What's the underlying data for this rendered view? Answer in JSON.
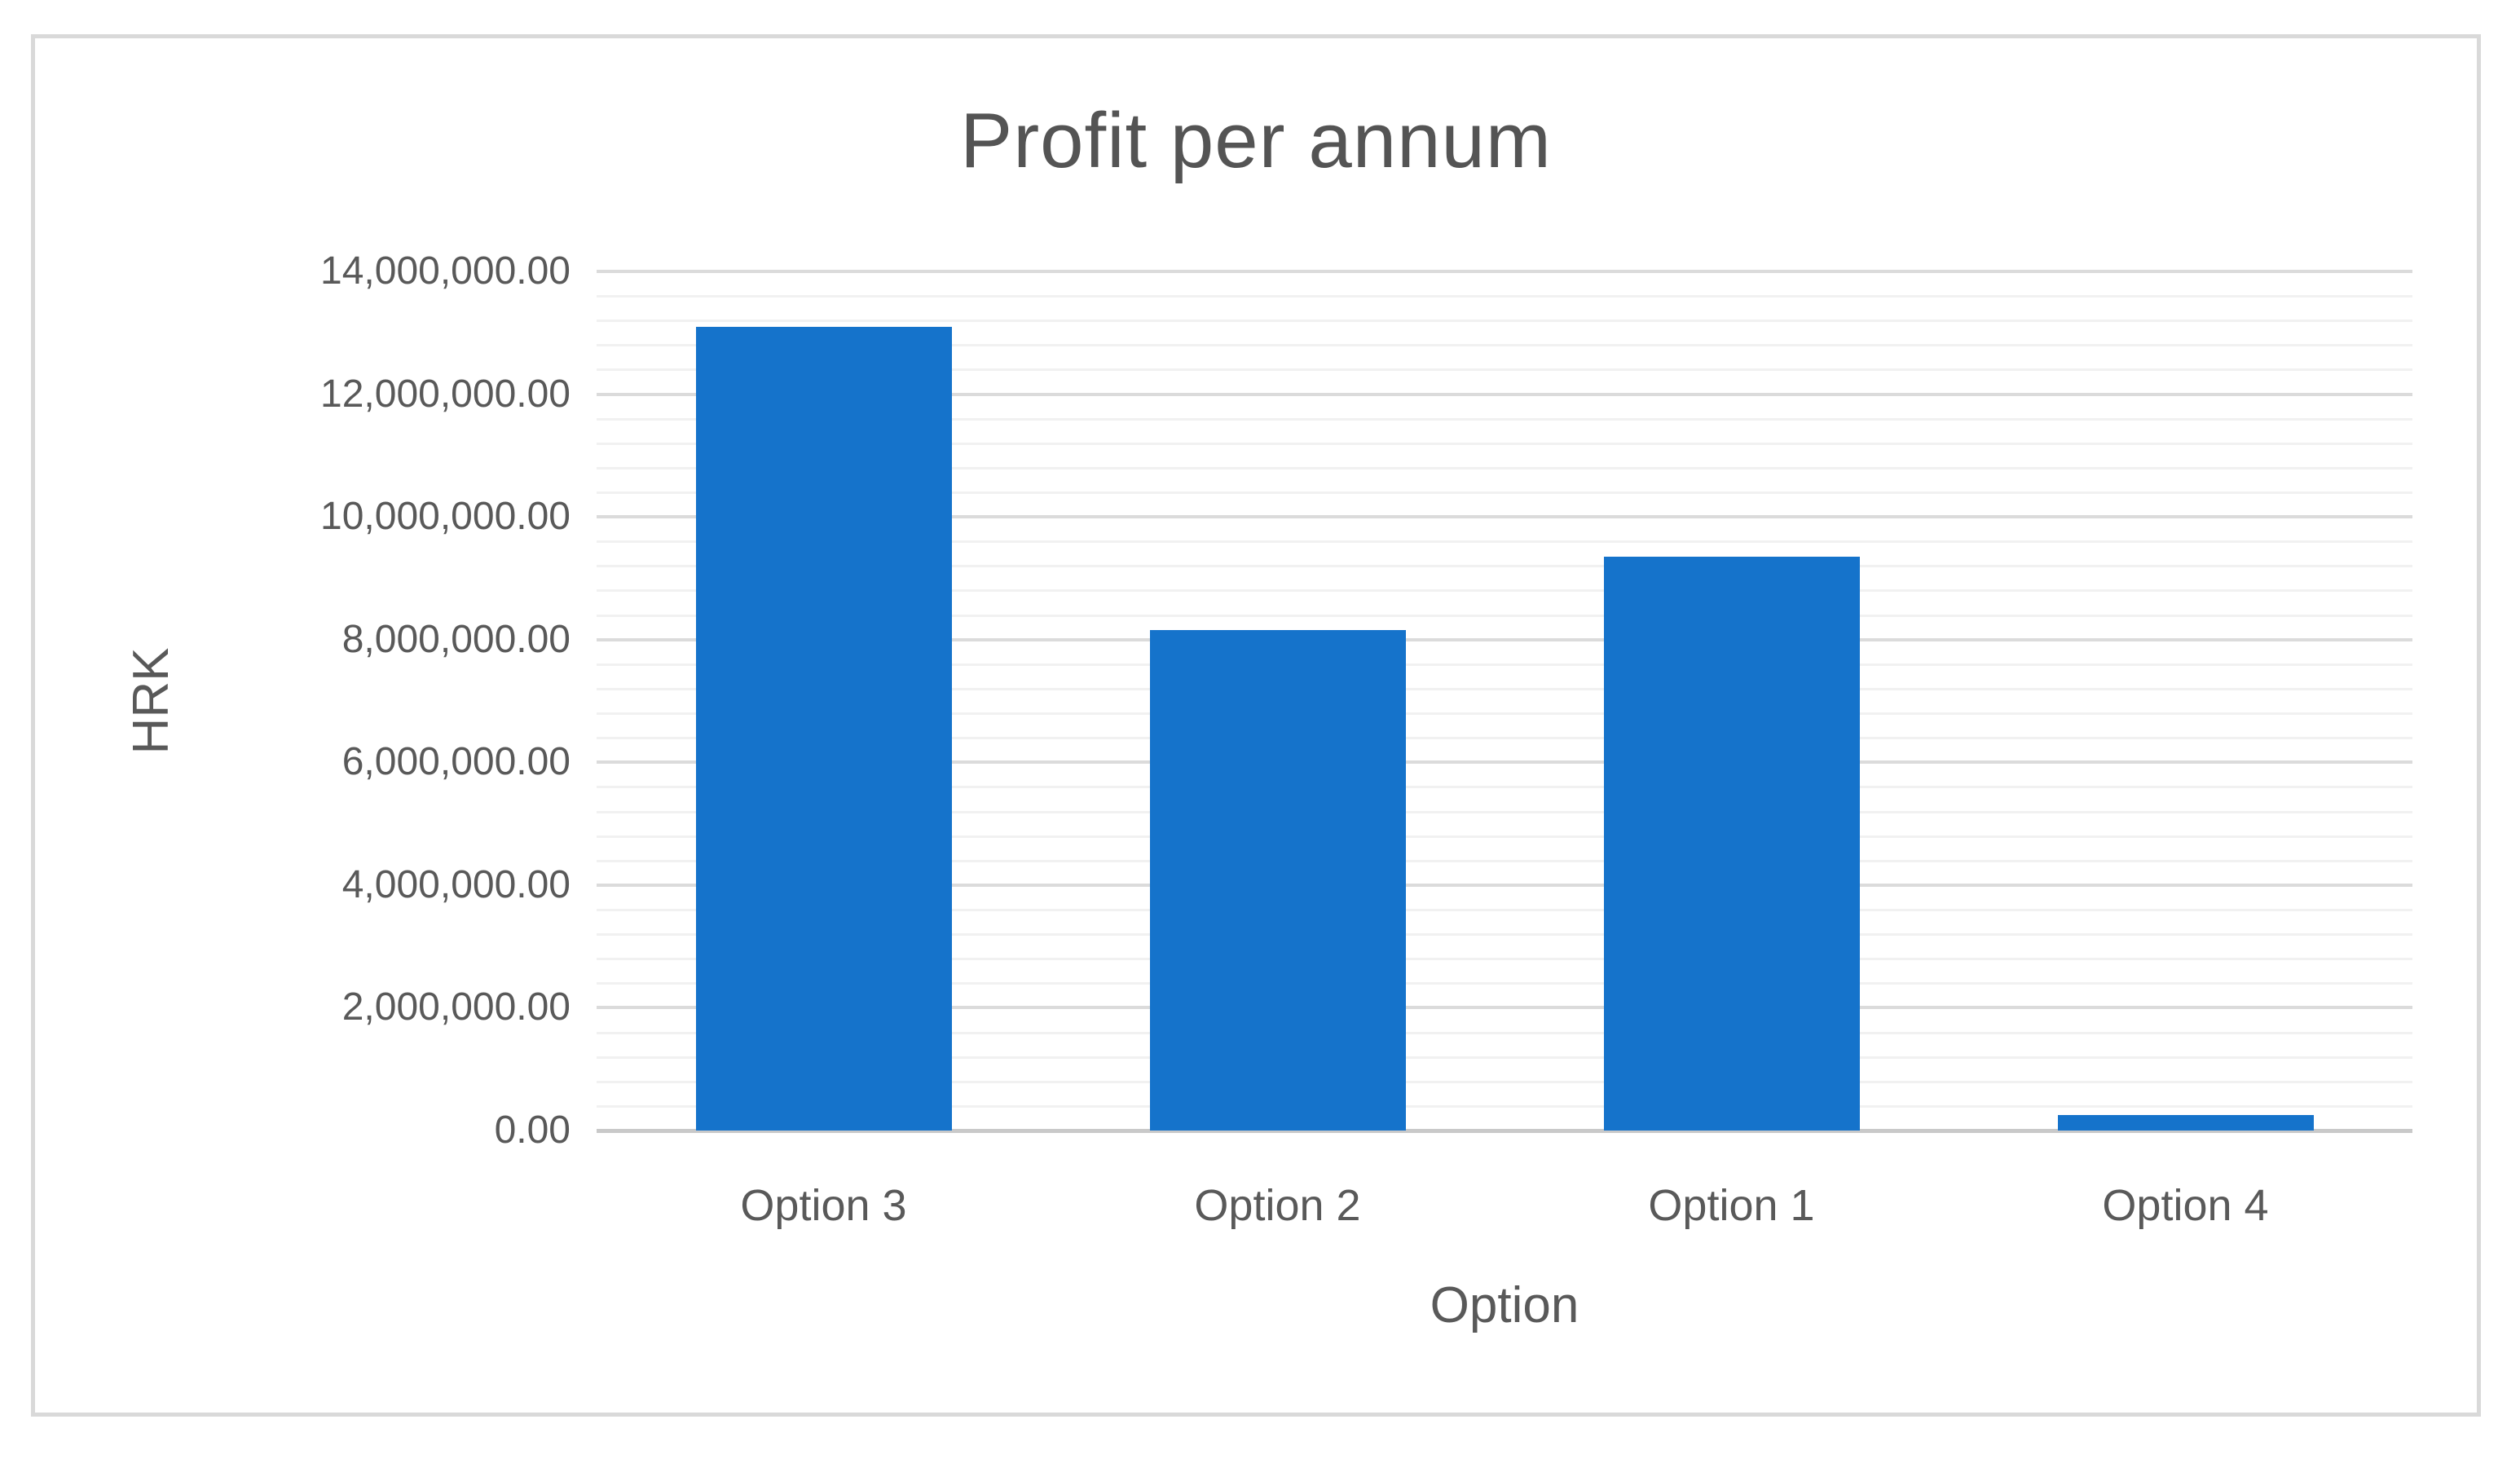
{
  "chart_data": {
    "type": "bar",
    "title": "Profit per annum",
    "xlabel": "Option",
    "ylabel": "HRK",
    "categories": [
      "Option 3",
      "Option 2",
      "Option 1",
      "Option 4"
    ],
    "values": [
      13100000,
      8150000,
      9350000,
      250000
    ],
    "series_name": "Profit per annum",
    "ylim": [
      0,
      14000000
    ],
    "y_major_unit": 2000000,
    "y_minor_unit": 400000,
    "y_tick_labels": [
      "0.00",
      "2,000,000.00",
      "4,000,000.00",
      "6,000,000.00",
      "8,000,000.00",
      "10,000,000.00",
      "12,000,000.00",
      "14,000,000.00"
    ],
    "legend": "none",
    "grid": "horizontal major and minor gridlines",
    "colors": {
      "bar": "#1573CB",
      "title_text": "#545454",
      "axis_text": "#595959",
      "gridline_major": "#DBDBDB",
      "gridline_minor": "#F1F1F1",
      "axis_line": "#C9C9C9",
      "frame_border": "#D9D9D9",
      "background": "#FFFFFF"
    }
  }
}
